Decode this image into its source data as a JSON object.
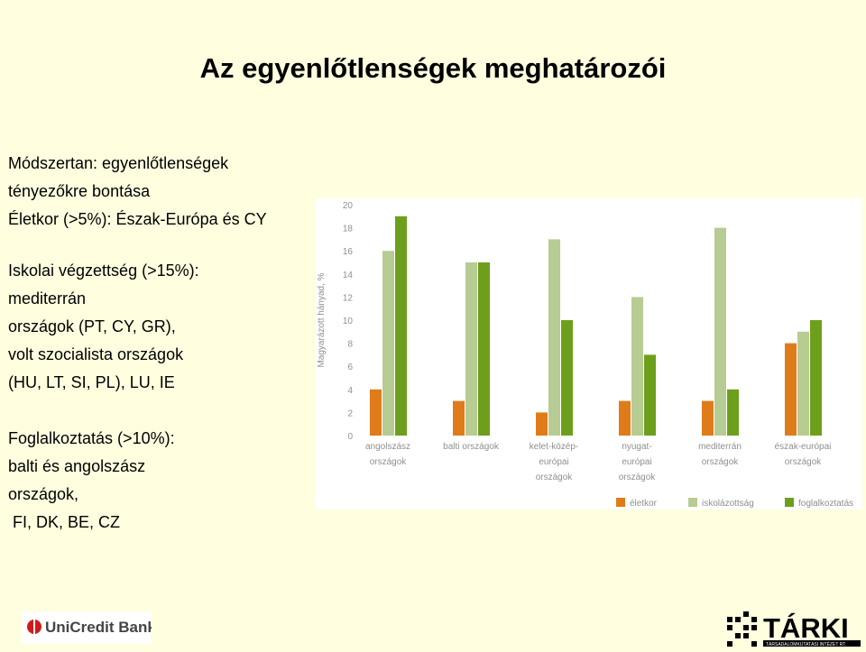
{
  "title": "Az egyenlőtlenségek meghatározói",
  "text": {
    "block1": [
      "Módszertan: egyenlőtlenségek",
      "tényezőkre bontása",
      "Életkor (>5%): Észak-Európa és CY"
    ],
    "block2": [
      "Iskolai végzettség (>15%):",
      "mediterrán",
      "országok (PT, CY, GR),",
      "volt szocialista országok",
      "(HU, LT, SI, PL), LU, IE"
    ],
    "block3": [
      "Foglalkoztatás (>10%):",
      "balti és angolszász",
      "országok,",
      " FI, DK, BE, CZ"
    ]
  },
  "logos": {
    "unicredit": "UniCredit Bank",
    "tarki": "TÁRKI",
    "tarki_sub": "TÁRSADALOMKUTATÁSI INTÉZET RT."
  },
  "colors": {
    "eletkor": "#e07b1a",
    "iskolazottsag": "#b7cc92",
    "foglalkoztatas": "#6e9f1c",
    "axis_text": "#8f8f8f",
    "background": "#ffffe0"
  },
  "chart_data": {
    "type": "bar",
    "ylabel": "Magyarázott hányad, %",
    "ylim": [
      0,
      20
    ],
    "yticks": [
      "0",
      "2",
      "4",
      "6",
      "8",
      "10",
      "12",
      "14",
      "16",
      "18",
      "20"
    ],
    "categories": [
      [
        "angolszász",
        "országok"
      ],
      [
        "balti országok"
      ],
      [
        "kelet-közép-",
        "európai",
        "országok"
      ],
      [
        "nyugat-",
        "európai",
        "országok"
      ],
      [
        "mediterrán",
        "országok"
      ],
      [
        "észak-európai",
        "országok"
      ]
    ],
    "series": [
      {
        "name": "életkor",
        "values": [
          4,
          3,
          2,
          3,
          3,
          8
        ]
      },
      {
        "name": "iskolázottság",
        "values": [
          16,
          15,
          17,
          12,
          18,
          9
        ]
      },
      {
        "name": "foglalkoztatás",
        "values": [
          19,
          15,
          10,
          7,
          4,
          10
        ]
      }
    ],
    "legend": "bottom",
    "grid": false
  }
}
